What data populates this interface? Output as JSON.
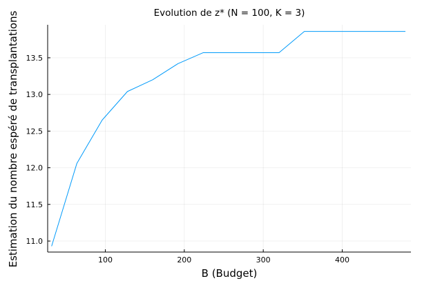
{
  "chart_data": {
    "type": "line",
    "title": "Evolution de z* (N = 100, K = 3)",
    "xlabel": "B (Budget)",
    "ylabel": "Estimation du nombre espéré de transplantations",
    "xlim": [
      27,
      487
    ],
    "ylim": [
      10.85,
      13.95
    ],
    "xticks": [
      100,
      200,
      300,
      400
    ],
    "yticks": [
      11.0,
      11.5,
      12.0,
      12.5,
      13.0,
      13.5
    ],
    "xtick_labels": [
      "100",
      "200",
      "300",
      "400"
    ],
    "ytick_labels": [
      "11.0",
      "11.5",
      "12.0",
      "12.5",
      "13.0",
      "13.5"
    ],
    "grid": true,
    "legend": "none",
    "color": "#009AFA",
    "series": [
      {
        "x": [
          32,
          64,
          96,
          128,
          160,
          192,
          224,
          256,
          288,
          320,
          352,
          384,
          416,
          448,
          480
        ],
        "y": [
          10.93,
          12.06,
          12.65,
          13.04,
          13.2,
          13.42,
          13.57,
          13.57,
          13.57,
          13.57,
          13.86,
          13.86,
          13.86,
          13.86,
          13.86
        ]
      }
    ]
  }
}
